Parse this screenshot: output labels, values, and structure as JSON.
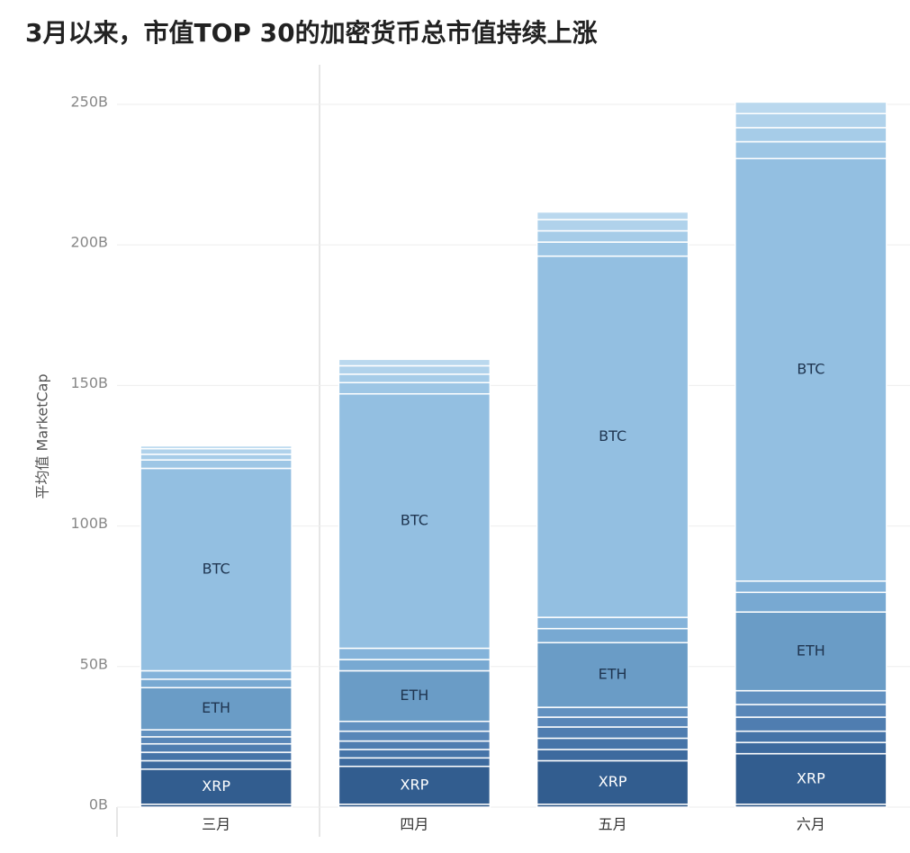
{
  "chart_data": {
    "type": "stacked-bar",
    "title": "3月以来，市值TOP 30的加密货币总市值持续上涨",
    "y_label": "平均值 MarketCap",
    "categories": [
      "三月",
      "四月",
      "五月",
      "六月"
    ],
    "ylim": [
      0,
      260
    ],
    "yticks": [
      {
        "value": 0,
        "label": "0B"
      },
      {
        "value": 50,
        "label": "50B"
      },
      {
        "value": 100,
        "label": "100B"
      },
      {
        "value": 150,
        "label": "150B"
      },
      {
        "value": 200,
        "label": "200B"
      },
      {
        "value": 250,
        "label": "250B"
      }
    ],
    "grid": true,
    "series": [
      {
        "color": "#2d5787",
        "values": [
          1,
          1,
          1,
          1
        ]
      },
      {
        "name": "XRP",
        "color": "#325d8f",
        "values": [
          12.5,
          13.5,
          15.5,
          18
        ]
      },
      {
        "color": "#3d6a9e",
        "values": [
          3,
          3,
          4,
          4
        ]
      },
      {
        "color": "#4674a8",
        "values": [
          3,
          3,
          4,
          4
        ]
      },
      {
        "color": "#4f7db0",
        "values": [
          3,
          3,
          4,
          5
        ]
      },
      {
        "color": "#5886b8",
        "values": [
          2.5,
          3.5,
          3.5,
          4.5
        ]
      },
      {
        "color": "#6291c0",
        "values": [
          2.5,
          3.5,
          3.5,
          4.9
        ]
      },
      {
        "name": "ETH",
        "color": "#6a9cc6",
        "values": [
          15,
          18,
          23,
          28
        ]
      },
      {
        "color": "#78a9d2",
        "values": [
          3,
          4,
          5,
          7
        ]
      },
      {
        "color": "#84b3da",
        "values": [
          3,
          4,
          4,
          4
        ]
      },
      {
        "name": "BTC",
        "color": "#93bfe1",
        "values": [
          72,
          90.5,
          128.5,
          150.3
        ]
      },
      {
        "color": "#9dc6e5",
        "values": [
          3,
          4,
          5,
          6
        ]
      },
      {
        "color": "#a6cce8",
        "values": [
          2,
          3,
          4,
          5
        ]
      },
      {
        "color": "#b0d2eb",
        "values": [
          2,
          3,
          4,
          5
        ]
      },
      {
        "color": "#bad8ee",
        "values": [
          1,
          2.3,
          2.7,
          4.1
        ]
      }
    ]
  }
}
